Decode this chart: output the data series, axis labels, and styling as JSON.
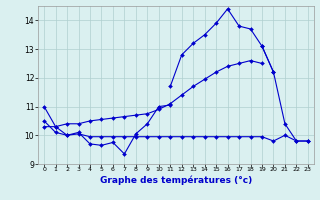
{
  "xlabel": "Graphe des températures (°c)",
  "x": [
    0,
    1,
    2,
    3,
    4,
    5,
    6,
    7,
    8,
    9,
    10,
    11,
    12,
    13,
    14,
    15,
    16,
    17,
    18,
    19,
    20,
    21,
    22,
    23
  ],
  "line1_x": [
    0,
    1,
    2,
    3,
    4,
    5,
    6,
    7,
    8,
    9,
    10,
    11
  ],
  "line1_y": [
    11.0,
    10.3,
    10.0,
    10.1,
    9.7,
    9.65,
    9.75,
    9.35,
    10.05,
    10.4,
    11.0,
    11.05
  ],
  "line2_x": [
    11,
    12,
    13,
    14,
    15,
    16,
    17,
    18,
    19,
    20
  ],
  "line2_y": [
    11.7,
    12.8,
    13.2,
    13.5,
    13.9,
    14.4,
    13.8,
    13.7,
    13.1,
    12.2
  ],
  "line3_x": [
    0,
    1,
    2,
    3,
    4,
    5,
    6,
    7,
    8,
    9,
    10,
    11,
    12,
    13,
    14,
    15,
    16,
    17,
    18,
    19
  ],
  "line3_y": [
    10.3,
    10.3,
    10.4,
    10.4,
    10.5,
    10.55,
    10.6,
    10.65,
    10.7,
    10.75,
    10.9,
    11.1,
    11.4,
    11.7,
    11.95,
    12.2,
    12.4,
    12.5,
    12.6,
    12.5
  ],
  "line4_x": [
    0,
    1,
    2,
    3,
    4,
    5,
    6,
    7,
    8,
    9,
    10,
    11,
    12,
    13,
    14,
    15,
    16,
    17,
    18,
    19,
    20,
    21,
    22,
    23
  ],
  "line4_y": [
    10.5,
    10.1,
    10.0,
    10.05,
    9.95,
    9.95,
    9.95,
    9.95,
    9.95,
    9.95,
    9.95,
    9.95,
    9.95,
    9.95,
    9.95,
    9.95,
    9.95,
    9.95,
    9.95,
    9.95,
    9.8,
    10.0,
    9.8,
    9.8
  ],
  "line5_x": [
    19,
    20,
    21,
    22,
    23
  ],
  "line5_y": [
    13.1,
    12.2,
    10.4,
    9.8,
    9.8
  ],
  "color": "#0000cc",
  "bg_color": "#daf0f0",
  "grid_color": "#b0d0d0",
  "ylim": [
    9.0,
    14.5
  ],
  "xlim": [
    -0.5,
    23.5
  ],
  "yticks": [
    9,
    10,
    11,
    12,
    13,
    14
  ],
  "xticks": [
    0,
    1,
    2,
    3,
    4,
    5,
    6,
    7,
    8,
    9,
    10,
    11,
    12,
    13,
    14,
    15,
    16,
    17,
    18,
    19,
    20,
    21,
    22,
    23
  ]
}
